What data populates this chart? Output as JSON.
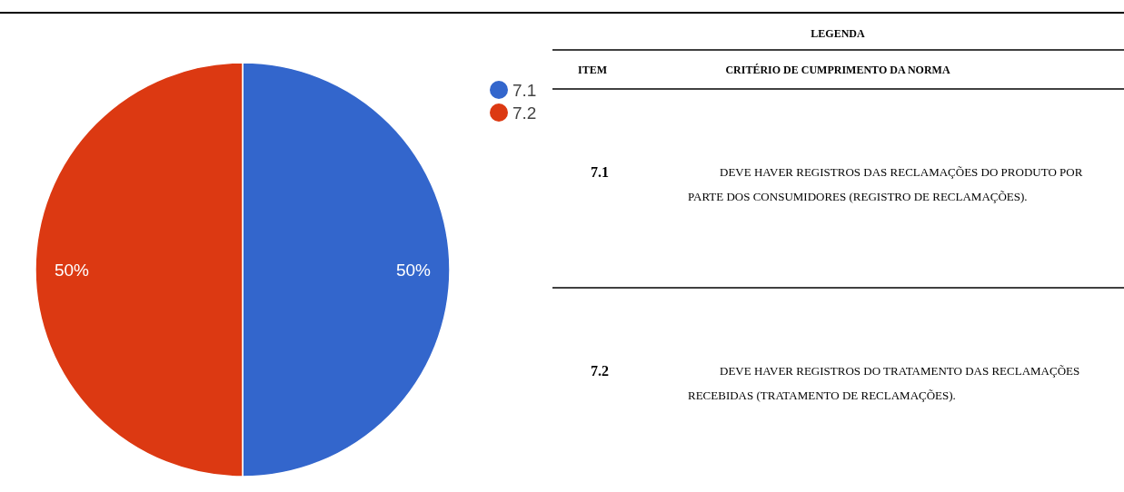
{
  "chart_data": [
    {
      "type": "pie",
      "categories": [
        "7.1",
        "7.2"
      ],
      "values": [
        50,
        50
      ],
      "colors": [
        "#3366cc",
        "#dc3912"
      ],
      "value_labels": [
        "50%",
        "50%"
      ],
      "legend": "top right"
    },
    {
      "type": "other",
      "title": "LEGENDA",
      "annotations": [
        "ITEM",
        "CRITÉRIO DE CUMPRIMENTO DA NORMA",
        "7.1",
        "DEVE HAVER REGISTROS DAS RECLAMAÇÕES DO PRODUTO POR PARTE DOS CONSUMIDORES (REGISTRO DE RECLAMAÇÕES).",
        "7.2",
        "DEVE HAVER REGISTROS DO TRATAMENTO DAS RECLAMAÇÕES RECEBIDAS (TRATAMENTO DE RECLAMAÇÕES)."
      ]
    }
  ]
}
